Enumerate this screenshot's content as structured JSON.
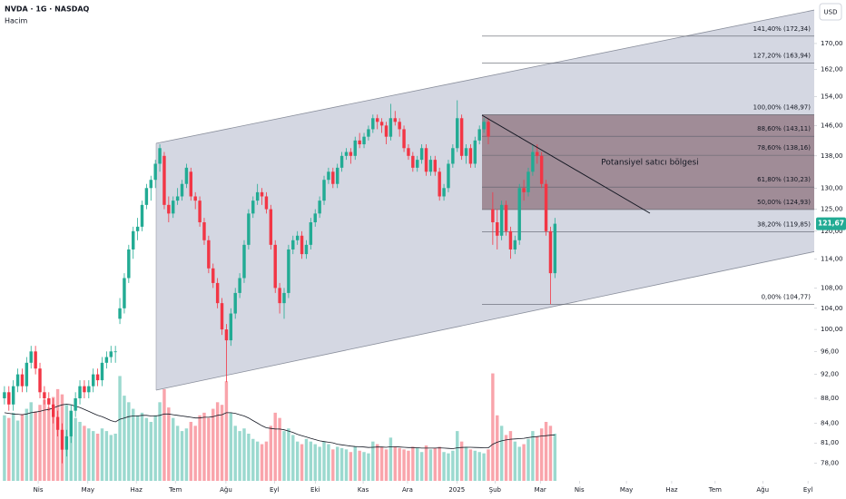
{
  "header": {
    "symbol": "NVDA · 1G · NASDAQ",
    "indicator": "Hacim",
    "currency": "USD"
  },
  "chart_data": {
    "type": "candlestick",
    "ohlc": [
      [
        88,
        90,
        87,
        89
      ],
      [
        89,
        90,
        86,
        87
      ],
      [
        87,
        91,
        86,
        90
      ],
      [
        90,
        93,
        89,
        92
      ],
      [
        92,
        93,
        89,
        90
      ],
      [
        90,
        95,
        89,
        94
      ],
      [
        94,
        97,
        93,
        96
      ],
      [
        96,
        97,
        92,
        93
      ],
      [
        93,
        94,
        88,
        89
      ],
      [
        89,
        90,
        87,
        88
      ],
      [
        88,
        89,
        86,
        87
      ],
      [
        87,
        88,
        84,
        85
      ],
      [
        85,
        86,
        82,
        83
      ],
      [
        83,
        84,
        78,
        80
      ],
      [
        80,
        83,
        79,
        82
      ],
      [
        82,
        87,
        81,
        86
      ],
      [
        86,
        89,
        85,
        88
      ],
      [
        88,
        91,
        87,
        90
      ],
      [
        90,
        91,
        88,
        89
      ],
      [
        89,
        91,
        88,
        90
      ],
      [
        90,
        93,
        89,
        92
      ],
      [
        92,
        93,
        90,
        91
      ],
      [
        91,
        95,
        90,
        94
      ],
      [
        94,
        96,
        93,
        95
      ],
      [
        95,
        97,
        94,
        96
      ],
      [
        96,
        97,
        94,
        96
      ],
      [
        102,
        106,
        101,
        104
      ],
      [
        104,
        111,
        103,
        110
      ],
      [
        110,
        117,
        109,
        116
      ],
      [
        116,
        121,
        114,
        120
      ],
      [
        120,
        123,
        118,
        121
      ],
      [
        121,
        127,
        120,
        126
      ],
      [
        126,
        131,
        125,
        130
      ],
      [
        130,
        133,
        127,
        132
      ],
      [
        132,
        137,
        130,
        136
      ],
      [
        136,
        141,
        134,
        140
      ],
      [
        138,
        139,
        125,
        126
      ],
      [
        126,
        128,
        122,
        124
      ],
      [
        124,
        128,
        123,
        127
      ],
      [
        127,
        130,
        126,
        128
      ],
      [
        128,
        132,
        127,
        131
      ],
      [
        131,
        136,
        130,
        135
      ],
      [
        134,
        135,
        127,
        128
      ],
      [
        128,
        129,
        125,
        127
      ],
      [
        127,
        128,
        121,
        122
      ],
      [
        122,
        123,
        117,
        118
      ],
      [
        118,
        119,
        111,
        112
      ],
      [
        112,
        113,
        108,
        109
      ],
      [
        109,
        110,
        104,
        105
      ],
      [
        105,
        106,
        99,
        100
      ],
      [
        100,
        101,
        90.7,
        98
      ],
      [
        98,
        104,
        97,
        103
      ],
      [
        103,
        108,
        102,
        107
      ],
      [
        107,
        111,
        106,
        110
      ],
      [
        110,
        118,
        109,
        117
      ],
      [
        117,
        125,
        116,
        124
      ],
      [
        124,
        128,
        123,
        127
      ],
      [
        127,
        131,
        126,
        129
      ],
      [
        129,
        130,
        126,
        128
      ],
      [
        128,
        129,
        124,
        125
      ],
      [
        125,
        126,
        116,
        117
      ],
      [
        117,
        118,
        107,
        108
      ],
      [
        108,
        109,
        103,
        105
      ],
      [
        105,
        108,
        102,
        107
      ],
      [
        107,
        117,
        106,
        116
      ],
      [
        116,
        119,
        115,
        118
      ],
      [
        118,
        120,
        117,
        119
      ],
      [
        119,
        120,
        114,
        115
      ],
      [
        115,
        118,
        114,
        117
      ],
      [
        117,
        123,
        116,
        122
      ],
      [
        122,
        125,
        121,
        124
      ],
      [
        124,
        128,
        123,
        127
      ],
      [
        127,
        133,
        126,
        132
      ],
      [
        132,
        135,
        131,
        134
      ],
      [
        134,
        135,
        130,
        131
      ],
      [
        131,
        136,
        130,
        135
      ],
      [
        135,
        139,
        134,
        138
      ],
      [
        138,
        140,
        137,
        139
      ],
      [
        139,
        140,
        136,
        138
      ],
      [
        138,
        143,
        137,
        142
      ],
      [
        142,
        144,
        140,
        141
      ],
      [
        141,
        144,
        140,
        143
      ],
      [
        143,
        146,
        142,
        145
      ],
      [
        145,
        149,
        144,
        148
      ],
      [
        148,
        149,
        145,
        147
      ],
      [
        147,
        148,
        144,
        146
      ],
      [
        146,
        147,
        141,
        143
      ],
      [
        143,
        152,
        142,
        148
      ],
      [
        148,
        150,
        146,
        147
      ],
      [
        147,
        148,
        143,
        145
      ],
      [
        145,
        146,
        139,
        140
      ],
      [
        140,
        141,
        137,
        138
      ],
      [
        138,
        139,
        134,
        135
      ],
      [
        135,
        138,
        134,
        137
      ],
      [
        137,
        141,
        136,
        140
      ],
      [
        140,
        141,
        133,
        134
      ],
      [
        134,
        138,
        133,
        137
      ],
      [
        137,
        138,
        133,
        134
      ],
      [
        134,
        135,
        127,
        128
      ],
      [
        128,
        131,
        127,
        130
      ],
      [
        130,
        137,
        129,
        136
      ],
      [
        136,
        141,
        135,
        140
      ],
      [
        140,
        153,
        139,
        148
      ],
      [
        148,
        149,
        137,
        138
      ],
      [
        138,
        141,
        136,
        140
      ],
      [
        140,
        141,
        135,
        136
      ],
      [
        136,
        143,
        135,
        142
      ],
      [
        142,
        146,
        141,
        145
      ],
      [
        145,
        148,
        144,
        147
      ],
      [
        147,
        148,
        141,
        143
      ],
      [
        125,
        129,
        117,
        122
      ],
      [
        122,
        125,
        116,
        119
      ],
      [
        119,
        127,
        118,
        126
      ],
      [
        126,
        127,
        119,
        120
      ],
      [
        120,
        121,
        114,
        116
      ],
      [
        116,
        119,
        115,
        118
      ],
      [
        118,
        131,
        117,
        130
      ],
      [
        130,
        132,
        127,
        129
      ],
      [
        129,
        135,
        128,
        134
      ],
      [
        134,
        141,
        133,
        139
      ],
      [
        139,
        141,
        136,
        138
      ],
      [
        138,
        139,
        130,
        131
      ],
      [
        131,
        132,
        119,
        120
      ],
      [
        120,
        121,
        104.8,
        111
      ],
      [
        111,
        123,
        110,
        121.67
      ]
    ],
    "volume": [
      500,
      480,
      520,
      460,
      510,
      550,
      600,
      530,
      580,
      620,
      560,
      640,
      700,
      660,
      580,
      520,
      480,
      450,
      420,
      400,
      380,
      360,
      400,
      380,
      350,
      360,
      800,
      650,
      600,
      550,
      500,
      520,
      480,
      450,
      500,
      600,
      700,
      560,
      480,
      420,
      380,
      400,
      450,
      420,
      500,
      520,
      480,
      550,
      600,
      580,
      760,
      520,
      420,
      380,
      400,
      360,
      320,
      300,
      280,
      300,
      420,
      520,
      480,
      380,
      400,
      350,
      300,
      280,
      320,
      300,
      280,
      260,
      300,
      280,
      240,
      260,
      250,
      240,
      220,
      260,
      230,
      220,
      210,
      300,
      280,
      260,
      240,
      330,
      260,
      250,
      240,
      230,
      260,
      250,
      220,
      270,
      240,
      250,
      260,
      220,
      210,
      230,
      380,
      300,
      260,
      240,
      230,
      220,
      210,
      240,
      820,
      500,
      420,
      350,
      380,
      300,
      260,
      280,
      320,
      380,
      340,
      400,
      450,
      420,
      360
    ],
    "volume_ma": [
      520,
      515,
      510,
      508,
      505,
      510,
      520,
      525,
      530,
      540,
      545,
      555,
      570,
      580,
      585,
      580,
      570,
      560,
      545,
      530,
      515,
      500,
      490,
      475,
      460,
      450,
      470,
      480,
      490,
      495,
      495,
      500,
      500,
      495,
      495,
      500,
      510,
      510,
      505,
      500,
      495,
      490,
      485,
      480,
      480,
      485,
      485,
      490,
      500,
      505,
      520,
      520,
      515,
      505,
      495,
      480,
      460,
      440,
      420,
      405,
      400,
      395,
      395,
      390,
      380,
      370,
      355,
      345,
      335,
      325,
      315,
      305,
      300,
      295,
      290,
      280,
      275,
      270,
      265,
      262,
      260,
      258,
      255,
      256,
      258,
      258,
      256,
      260,
      260,
      258,
      256,
      254,
      254,
      253,
      250,
      250,
      250,
      250,
      252,
      250,
      248,
      246,
      252,
      255,
      256,
      256,
      255,
      254,
      252,
      252,
      280,
      295,
      305,
      312,
      318,
      320,
      322,
      325,
      330,
      335,
      338,
      342,
      345,
      348,
      350
    ],
    "up_color": "#22ab94",
    "down_color": "#f23645",
    "ma_color": "#131722",
    "zone_color": "#7d5a66",
    "ylim": [
      75.5,
      184.3
    ],
    "log_scale": true,
    "yticks": [
      {
        "value": 170,
        "label": "170,00"
      },
      {
        "value": 162,
        "label": "162,00"
      },
      {
        "value": 154,
        "label": "154,00"
      },
      {
        "value": 146,
        "label": "146,00"
      },
      {
        "value": 138,
        "label": "138,00"
      },
      {
        "value": 130,
        "label": "130,00"
      },
      {
        "value": 125,
        "label": "125,00"
      },
      {
        "value": 120,
        "label": "120,00"
      },
      {
        "value": 114,
        "label": "114,00"
      },
      {
        "value": 108,
        "label": "108,00"
      },
      {
        "value": 104,
        "label": "104,00"
      },
      {
        "value": 100,
        "label": "100,00"
      },
      {
        "value": 96,
        "label": "96,00"
      },
      {
        "value": 92,
        "label": "92,00"
      },
      {
        "value": 88,
        "label": "88,00"
      },
      {
        "value": 84,
        "label": "84,00"
      },
      {
        "value": 81,
        "label": "81,00"
      },
      {
        "value": 78,
        "label": "78,00"
      }
    ],
    "xlim": [
      -1,
      182
    ],
    "xticks": [
      {
        "value": 7.6,
        "label": "Nis"
      },
      {
        "value": 18.8,
        "label": "May"
      },
      {
        "value": 29.7,
        "label": "Haz"
      },
      {
        "value": 38.5,
        "label": "Tem"
      },
      {
        "value": 49.9,
        "label": "Ağu"
      },
      {
        "value": 60.8,
        "label": "Eyl"
      },
      {
        "value": 70,
        "label": "Eki"
      },
      {
        "value": 80.8,
        "label": "Kas"
      },
      {
        "value": 90.8,
        "label": "Ara"
      },
      {
        "value": 101.9,
        "label": "2025"
      },
      {
        "value": 110.5,
        "label": "Şub"
      },
      {
        "value": 120.7,
        "label": "Mar"
      },
      {
        "value": 129.5,
        "label": "Nis"
      },
      {
        "value": 140.1,
        "label": "May"
      },
      {
        "value": 150.3,
        "label": "Haz"
      },
      {
        "value": 160.1,
        "label": "Tem"
      },
      {
        "value": 170.8,
        "label": "Ağu"
      },
      {
        "value": 181,
        "label": "Eyl"
      }
    ],
    "vlim": [
      0,
      900
    ],
    "fib_levels": [
      {
        "value": 172.34,
        "label": "141,40% (172,34)"
      },
      {
        "value": 163.94,
        "label": "127,20% (163,94)"
      },
      {
        "value": 148.97,
        "label": "100,00% (148,97)"
      },
      {
        "value": 143.11,
        "label": "88,60% (143,11)"
      },
      {
        "value": 138.16,
        "label": "78,60% (138,16)"
      },
      {
        "value": 130.23,
        "label": "61,80% (130,23)"
      },
      {
        "value": 124.93,
        "label": "50,00% (124,93)"
      },
      {
        "value": 119.85,
        "label": "38,20% (119,85)"
      },
      {
        "value": 104.77,
        "label": "0,00% (104,77)"
      }
    ],
    "annotation": "Potansiyel satıcı bölgesi",
    "price_tag": {
      "value": 121.67,
      "label": "121,67"
    }
  }
}
